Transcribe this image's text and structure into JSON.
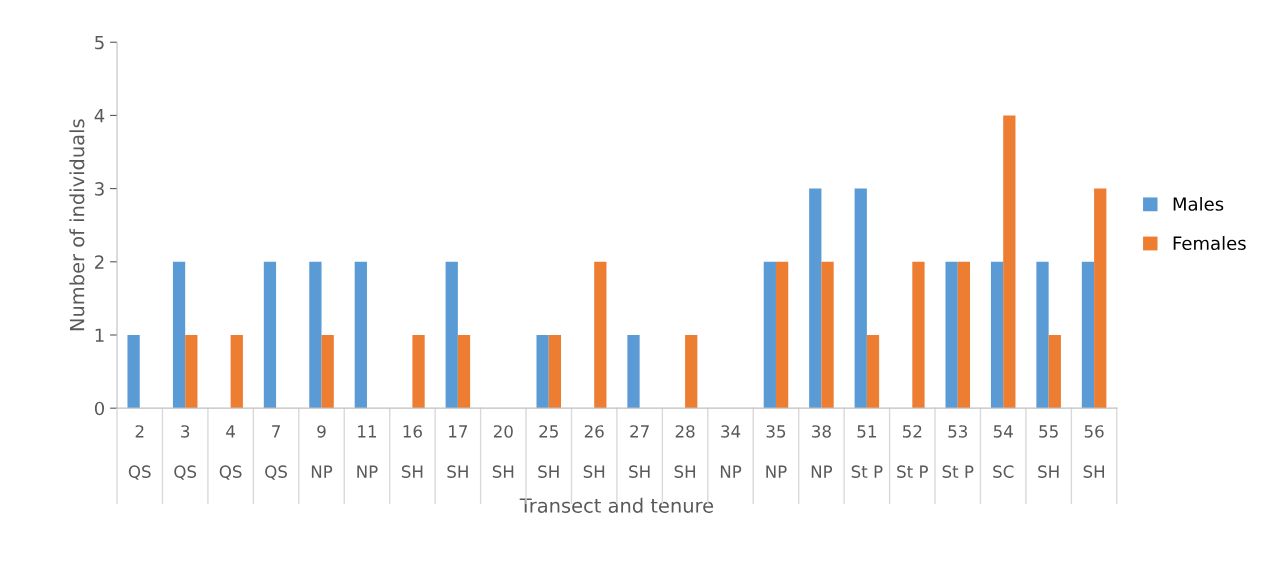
{
  "chart_data": {
    "type": "bar",
    "xlabel": "Transect and tenure",
    "ylabel": "Number of individuals",
    "categories": [
      "2\nQS",
      "3\nQS",
      "4\nQS",
      "7\nQS",
      "9\nNP",
      "11\nNP",
      "16\nSH",
      "17\nSH",
      "20\nSH",
      "25\nSH",
      "26\nSH",
      "27\nSH",
      "28\nSH",
      "34\nNP",
      "35\nNP",
      "38\nNP",
      "51\nSt P",
      "52\nSt P",
      "53\nSt P",
      "54\nSC",
      "55\nSH",
      "56\nSH"
    ],
    "series": [
      {
        "name": "Males",
        "color": "#5b9bd5",
        "values": [
          1,
          2,
          0,
          2,
          2,
          2,
          0,
          2,
          0,
          1,
          0,
          1,
          0,
          0,
          2,
          3,
          3,
          0,
          2,
          2,
          2,
          2
        ]
      },
      {
        "name": "Females",
        "color": "#ed7d31",
        "values": [
          0,
          1,
          1,
          0,
          1,
          0,
          1,
          1,
          0,
          1,
          2,
          0,
          1,
          0,
          2,
          2,
          1,
          2,
          2,
          4,
          1,
          3
        ]
      }
    ],
    "ylim": [
      0,
      5
    ],
    "yticks": [
      0,
      1,
      2,
      3,
      4,
      5
    ],
    "grid": false,
    "legend": "right"
  }
}
